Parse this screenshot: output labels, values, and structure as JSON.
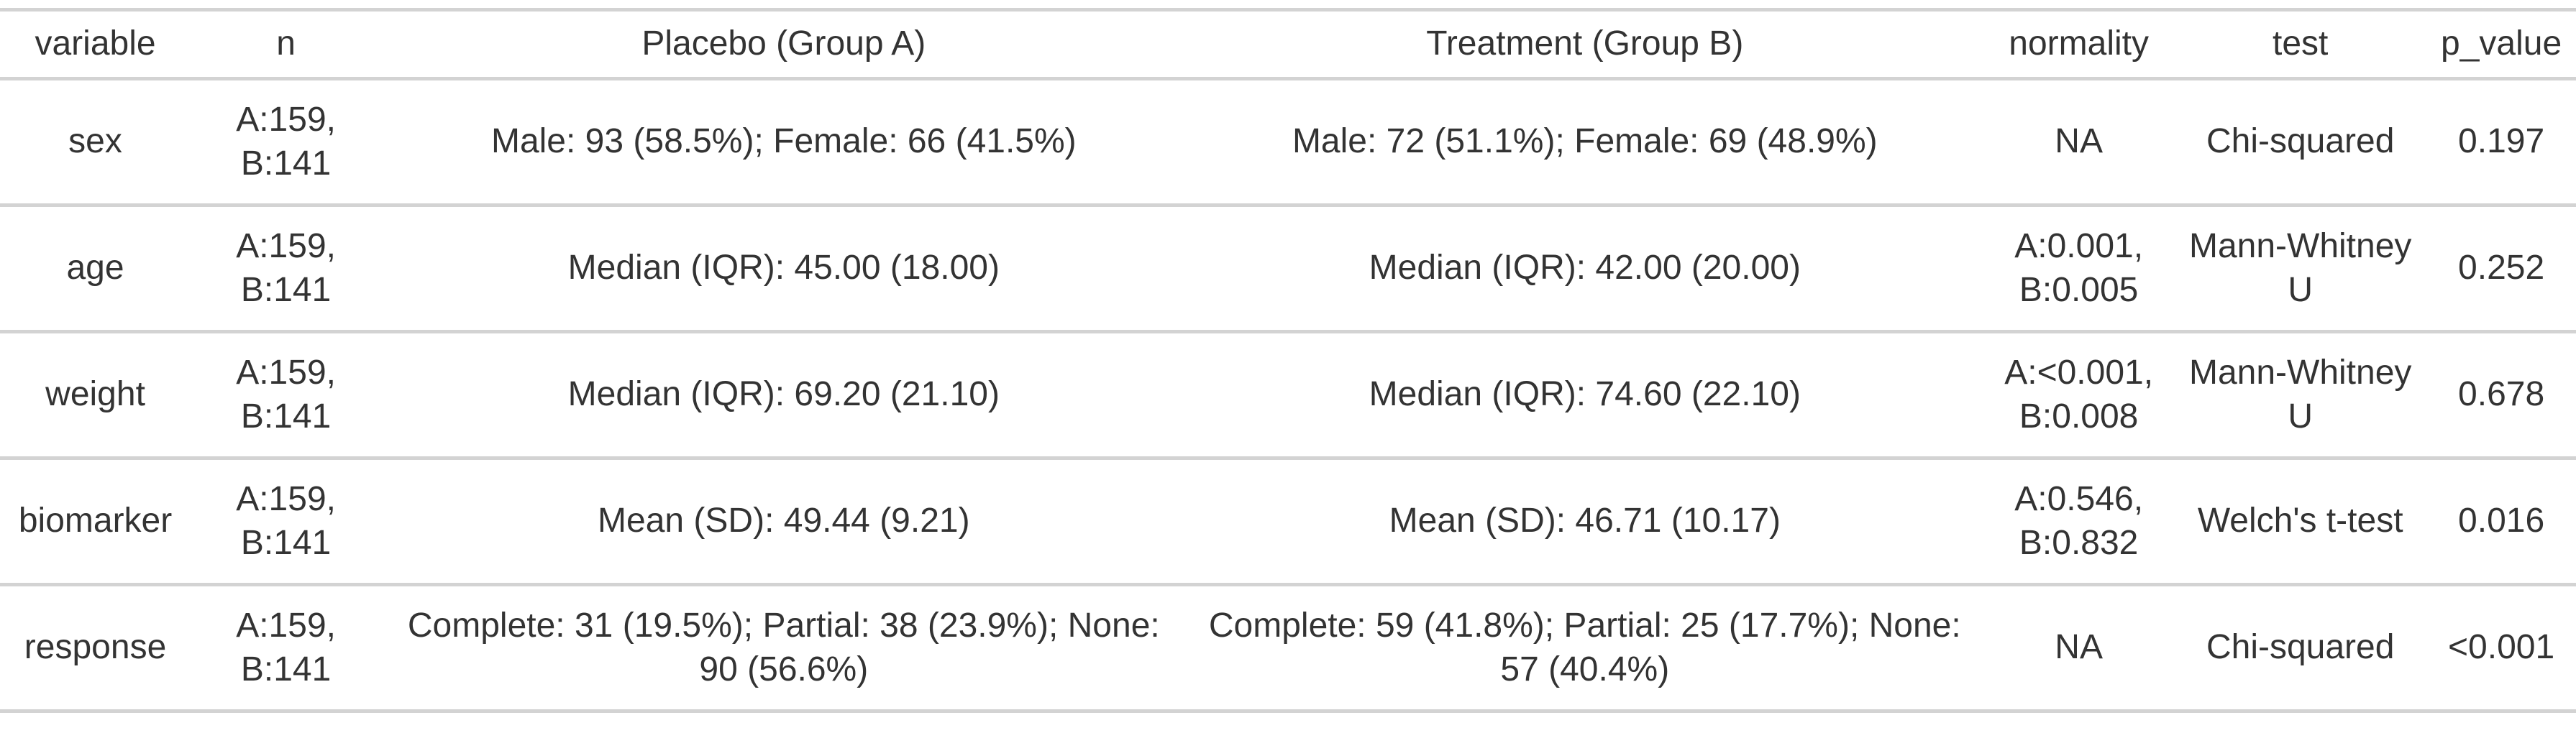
{
  "colors": {
    "background": "#ffffff",
    "text": "#333333",
    "rule_lines": "#d3d3d3"
  },
  "chart_data": {
    "type": "table",
    "title": "",
    "columns": [
      "variable",
      "n",
      "Placebo (Group A)",
      "Treatment (Group B)",
      "normality",
      "test",
      "p_value"
    ],
    "rows": [
      [
        "sex",
        "A:159, B:141",
        "Male: 93 (58.5%); Female: 66 (41.5%)",
        "Male: 72 (51.1%); Female: 69 (48.9%)",
        "NA",
        "Chi-squared",
        "0.197"
      ],
      [
        "age",
        "A:159, B:141",
        "Median (IQR): 45.00 (18.00)",
        "Median (IQR): 42.00 (20.00)",
        "A:0.001, B:0.005",
        "Mann-Whitney U",
        "0.252"
      ],
      [
        "weight",
        "A:159, B:141",
        "Median (IQR): 69.20 (21.10)",
        "Median (IQR): 74.60 (22.10)",
        "A:<0.001, B:0.008",
        "Mann-Whitney U",
        "0.678"
      ],
      [
        "biomarker",
        "A:159, B:141",
        "Mean (SD): 49.44 (9.21)",
        "Mean (SD): 46.71 (10.17)",
        "A:0.546, B:0.832",
        "Welch's t-test",
        "0.016"
      ],
      [
        "response",
        "A:159, B:141",
        "Complete: 31 (19.5%); Partial: 38 (23.9%); None: 90 (56.6%)",
        "Complete: 59 (41.8%); Partial: 25 (17.7%); None: 57 (40.4%)",
        "NA",
        "Chi-squared",
        "<0.001"
      ]
    ],
    "layout": {
      "grid": "horizontal-rules-only",
      "alignment": "center",
      "header_position": "top"
    }
  }
}
